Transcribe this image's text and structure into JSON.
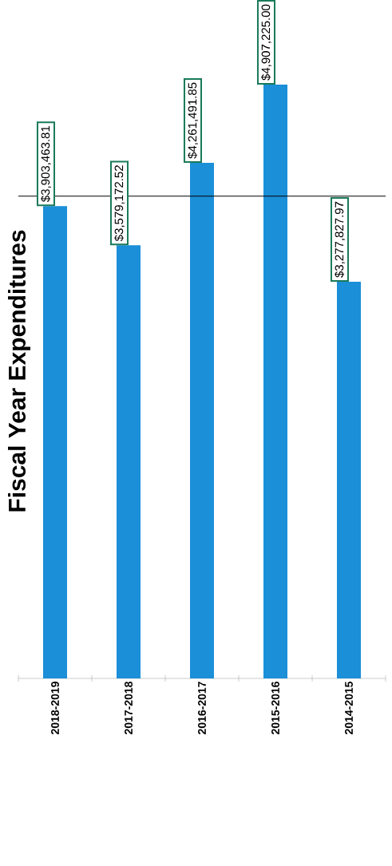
{
  "chart_data": {
    "type": "bar",
    "title": "Fiscal Year Expenditures",
    "categories": [
      "2018-2019",
      "2017-2018",
      "2016-2017",
      "2015-2016",
      "2014-2015"
    ],
    "values": [
      3903463.81,
      3579172.52,
      4261491.85,
      4907225.0,
      3277827.97
    ],
    "value_labels": [
      "$3,903,463.81",
      "$3,579,172.52",
      "$4,261,491.85",
      "$4,907,225.00",
      "$3,277,827.97"
    ],
    "color": "#1b8fd8",
    "ref_lines": [
      {
        "axis": "y",
        "value": 3985836.23,
        "color": "#000000"
      }
    ]
  }
}
